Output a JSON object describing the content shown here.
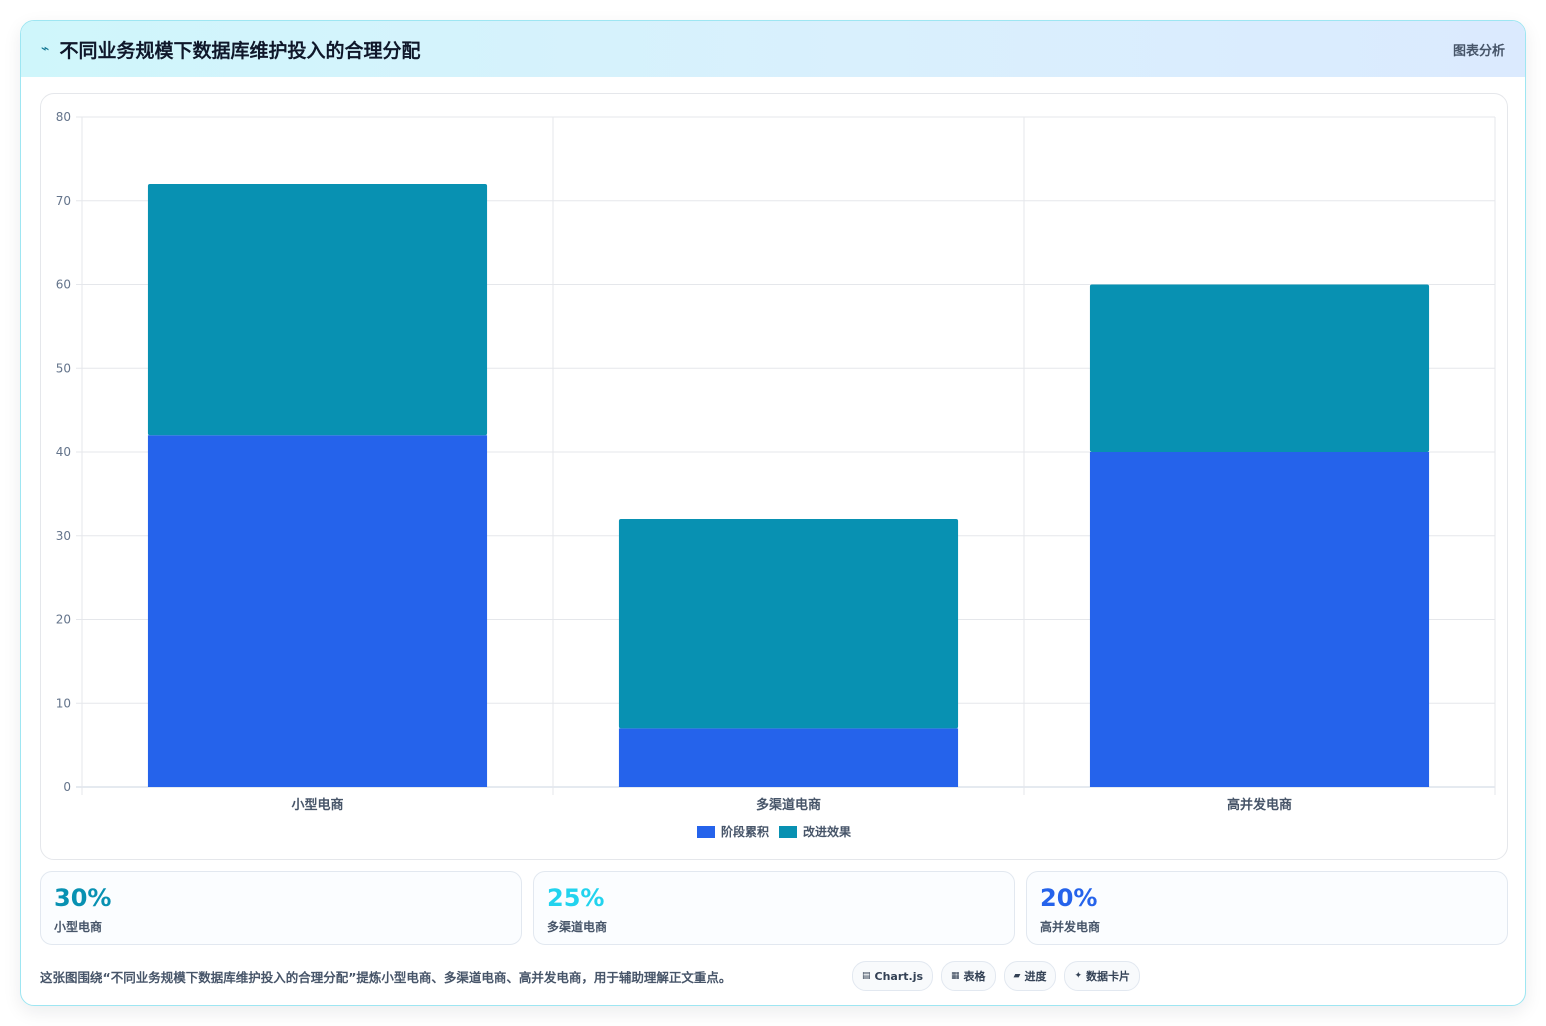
{
  "header": {
    "icon": "chart-line-icon",
    "title": "不同业务规模下数据库维护投入的合理分配",
    "right_label": "图表分析"
  },
  "chart_data": {
    "type": "bar",
    "stacked": true,
    "categories": [
      "小型电商",
      "多渠道电商",
      "高并发电商"
    ],
    "series": [
      {
        "name": "阶段累积",
        "values": [
          42,
          7,
          40
        ],
        "color": "#2563eb"
      },
      {
        "name": "改进效果",
        "values": [
          30,
          25,
          20
        ],
        "color": "#0891b2"
      }
    ],
    "ylim": [
      0,
      80
    ],
    "yticks": [
      0,
      10,
      20,
      30,
      40,
      50,
      60,
      70,
      80
    ],
    "grid": true,
    "legend": "bottom"
  },
  "stats": [
    {
      "value": "30%",
      "label": "小型电商",
      "color": "#0891b2"
    },
    {
      "value": "25%",
      "label": "多渠道电商",
      "color": "#22d3ee"
    },
    {
      "value": "20%",
      "label": "高并发电商",
      "color": "#2563eb"
    }
  ],
  "footer": {
    "text": "这张图围绕“不同业务规模下数据库维护投入的合理分配”提炼小型电商、多渠道电商、高并发电商，用于辅助理解正文重点。",
    "tags": [
      {
        "icon": "▤",
        "label": "Chart.js"
      },
      {
        "icon": "▦",
        "label": "表格"
      },
      {
        "icon": "▰",
        "label": "进度"
      },
      {
        "icon": "✦",
        "label": "数据卡片"
      }
    ]
  }
}
